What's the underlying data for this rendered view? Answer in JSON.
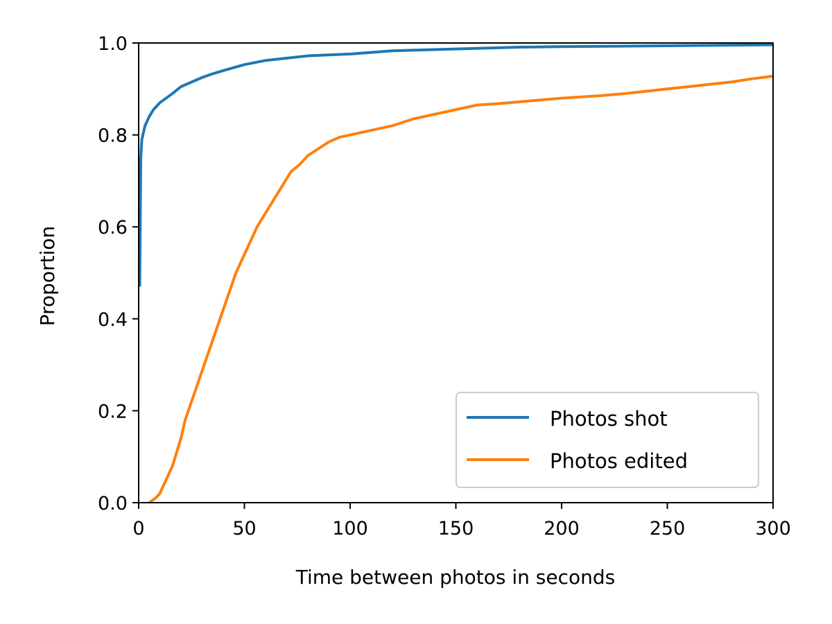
{
  "chart_data": {
    "type": "line",
    "xlabel": "Time between photos in seconds",
    "ylabel": "Proportion",
    "xlim": [
      0,
      300
    ],
    "ylim": [
      0,
      1
    ],
    "xticks": [
      "0",
      "50",
      "100",
      "150",
      "200",
      "250",
      "300"
    ],
    "yticks": [
      "0.0",
      "0.2",
      "0.4",
      "0.6",
      "0.8",
      "1.0"
    ],
    "grid": false,
    "legend_position": "bottom-right",
    "series": [
      {
        "name": "Photos shot",
        "color": "#1f77b4",
        "x": [
          0.5,
          1,
          1.5,
          2,
          3,
          5,
          7,
          10,
          13,
          16,
          20,
          25,
          30,
          35,
          40,
          50,
          60,
          70,
          80,
          100,
          120,
          150,
          180,
          200,
          250,
          300
        ],
        "y": [
          0.47,
          0.75,
          0.79,
          0.8,
          0.82,
          0.84,
          0.855,
          0.87,
          0.88,
          0.89,
          0.905,
          0.915,
          0.925,
          0.933,
          0.94,
          0.953,
          0.962,
          0.967,
          0.972,
          0.976,
          0.983,
          0.987,
          0.991,
          0.992,
          0.994,
          0.996
        ]
      },
      {
        "name": "Photos edited",
        "color": "#ff7f0e",
        "x": [
          5,
          8,
          10,
          12,
          14,
          16,
          18,
          20,
          22,
          25,
          28,
          31,
          34,
          37,
          40,
          43,
          46,
          50,
          53,
          56,
          60,
          64,
          68,
          72,
          76,
          80,
          85,
          90,
          95,
          100,
          110,
          120,
          130,
          140,
          150,
          160,
          170,
          180,
          190,
          200,
          210,
          220,
          230,
          240,
          250,
          260,
          270,
          280,
          290,
          300
        ],
        "y": [
          0.0,
          0.01,
          0.02,
          0.04,
          0.06,
          0.08,
          0.11,
          0.14,
          0.18,
          0.22,
          0.26,
          0.3,
          0.34,
          0.38,
          0.42,
          0.46,
          0.5,
          0.54,
          0.57,
          0.6,
          0.63,
          0.66,
          0.69,
          0.72,
          0.735,
          0.755,
          0.77,
          0.785,
          0.795,
          0.8,
          0.81,
          0.82,
          0.835,
          0.845,
          0.855,
          0.865,
          0.868,
          0.872,
          0.876,
          0.88,
          0.883,
          0.886,
          0.89,
          0.895,
          0.9,
          0.905,
          0.91,
          0.915,
          0.922,
          0.928
        ]
      }
    ]
  }
}
